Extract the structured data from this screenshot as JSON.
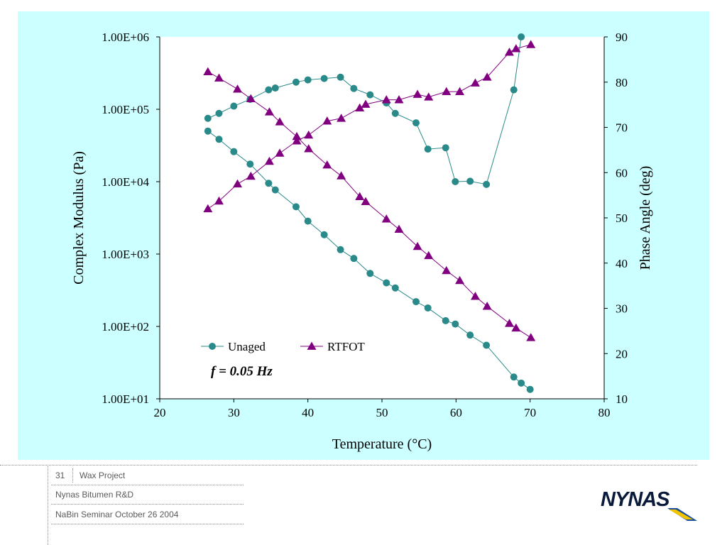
{
  "chart_data": {
    "type": "line",
    "title": "",
    "annotation": "f = 0.05 Hz",
    "xlabel": "Temperature (°C)",
    "ylabel": "Complex Modulus (Pa)",
    "y2label": "Phase Angle (deg)",
    "xlim": [
      20,
      80
    ],
    "ylim": [
      10,
      1000000
    ],
    "yscale": "log",
    "y2lim": [
      10,
      90
    ],
    "x_ticks": [
      "20",
      "30",
      "40",
      "50",
      "60",
      "70",
      "80"
    ],
    "y_ticks": [
      "1.00E+01",
      "1.00E+02",
      "1.00E+03",
      "1.00E+04",
      "1.00E+05",
      "1.00E+06"
    ],
    "y2_ticks": [
      "10",
      "20",
      "30",
      "40",
      "50",
      "60",
      "70",
      "80",
      "90"
    ],
    "grid": false,
    "legend_position": "lower-left",
    "series": [
      {
        "name": "Unaged",
        "axis": "left",
        "quantity": "modulus",
        "marker": "circle",
        "color": "#2a8a8a",
        "x": [
          26.5,
          28,
          30,
          32.2,
          34.7,
          35.6,
          38.4,
          40,
          42.2,
          44.4,
          46.2,
          48.4,
          50.6,
          51.8,
          54.6,
          56.2,
          58.6,
          59.9,
          61.9,
          64.1,
          67.8,
          68.8,
          70.0
        ],
        "y": [
          50000,
          38500,
          26000,
          17500,
          9500,
          7700,
          4500,
          2850,
          1850,
          1150,
          870,
          540,
          400,
          340,
          220,
          180,
          120,
          108,
          76,
          55,
          20,
          16.5,
          13.5
        ]
      },
      {
        "name": "Unaged",
        "axis": "right",
        "quantity": "phase",
        "marker": "circle",
        "color": "#2a8a8a",
        "x": [
          26.5,
          28,
          30,
          32.2,
          34.7,
          35.6,
          38.4,
          40,
          42.2,
          44.4,
          46.2,
          48.4,
          50.6,
          51.8,
          54.6,
          56.2,
          58.6,
          59.9,
          61.9,
          64.1,
          67.8,
          68.8
        ],
        "y": [
          72,
          73.1,
          74.7,
          76.2,
          78.3,
          78.7,
          80,
          80.5,
          80.8,
          81.1,
          78.6,
          77.2,
          75.4,
          73.1,
          71,
          65.2,
          65.5,
          58,
          58.1,
          57.4,
          78.3,
          90
        ]
      },
      {
        "name": "RTFOT",
        "axis": "left",
        "quantity": "modulus",
        "marker": "triangle",
        "color": "#800080",
        "x": [
          26.5,
          28,
          30.5,
          32.3,
          34.8,
          36.2,
          38.5,
          40.1,
          42.6,
          44.5,
          47,
          47.8,
          50.6,
          52.3,
          54.8,
          56.3,
          58.7,
          60.5,
          62.6,
          64.2,
          67.2,
          68.1,
          70.1
        ],
        "y": [
          330000,
          270000,
          190000,
          140000,
          92000,
          67000,
          42000,
          28500,
          17000,
          12000,
          6200,
          5300,
          3050,
          2200,
          1270,
          950,
          590,
          430,
          260,
          190,
          110,
          95,
          70
        ]
      },
      {
        "name": "RTFOT",
        "axis": "right",
        "quantity": "phase",
        "marker": "triangle",
        "color": "#800080",
        "x": [
          26.5,
          28,
          30.5,
          32.3,
          34.8,
          36.2,
          38.5,
          40.1,
          42.6,
          44.5,
          47,
          47.8,
          50.6,
          52.3,
          54.8,
          56.3,
          58.7,
          60.5,
          62.6,
          64.2,
          67.2,
          68.1,
          70.1
        ],
        "y": [
          52,
          53.7,
          57.5,
          59.2,
          62.5,
          64.3,
          67,
          68.3,
          71.4,
          72,
          74.3,
          75.1,
          76.1,
          76.1,
          77.3,
          76.7,
          77.9,
          77.9,
          79.8,
          81.1,
          86.6,
          87.4,
          88.3
        ]
      }
    ]
  },
  "legend": {
    "items": [
      {
        "label": "Unaged",
        "color": "#2a8a8a",
        "marker": "circle"
      },
      {
        "label": "RTFOT",
        "color": "#800080",
        "marker": "triangle"
      }
    ]
  },
  "footer": {
    "slide_number": "31",
    "project": "Wax Project",
    "organization": "Nynas Bitumen R&D",
    "seminar": "NaBin Seminar October 26 2004"
  },
  "logo": {
    "text": "NYNAS",
    "colors": {
      "text": "#0a1a3a",
      "blue": "#1a4fa0",
      "yellow": "#f2c400"
    }
  },
  "colors": {
    "panel_background": "#ccffff",
    "plot_background": "#ffffff",
    "unaged": "#2a8a8a",
    "rtfot": "#800080"
  }
}
